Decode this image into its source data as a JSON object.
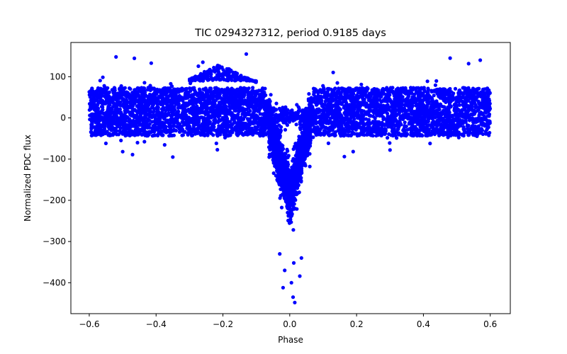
{
  "chart_data": {
    "type": "scatter",
    "title": "TIC 0294327312, period 0.9185 days",
    "xlabel": "Phase",
    "ylabel": "Normalized PDC flux",
    "xlim": [
      -0.655,
      0.66
    ],
    "ylim": [
      -475,
      183
    ],
    "x_ticks": [
      -0.6,
      -0.4,
      -0.2,
      0.0,
      0.2,
      0.4,
      0.6
    ],
    "x_tick_labels": [
      "−0.6",
      "−0.4",
      "−0.2",
      "0.0",
      "0.2",
      "0.4",
      "0.6"
    ],
    "y_ticks": [
      100,
      0,
      -100,
      -200,
      -300,
      -400
    ],
    "y_tick_labels": [
      "100",
      "0",
      "−100",
      "−200",
      "−300",
      "−400"
    ],
    "grid": false,
    "marker_color": "#0000ff",
    "series": [
      {
        "name": "Normalized PDC flux",
        "model": {
          "phase_range": [
            -0.6,
            0.6
          ],
          "baseline_mean": 15,
          "baseline_spread": 45,
          "primary_eclipse_center": 0.0,
          "primary_eclipse_depth": 205,
          "primary_eclipse_halfwidth": 0.07,
          "point_count": 5200
        },
        "outlier_points": [
          {
            "x": -0.13,
            "y": 155
          },
          {
            "x": 0.015,
            "y": -448
          },
          {
            "x": 0.01,
            "y": -435
          },
          {
            "x": -0.02,
            "y": -412
          },
          {
            "x": 0.005,
            "y": -400
          },
          {
            "x": 0.03,
            "y": -384
          },
          {
            "x": -0.015,
            "y": -370
          },
          {
            "x": 0.012,
            "y": -352
          },
          {
            "x": -0.03,
            "y": -330
          },
          {
            "x": 0.035,
            "y": -340
          },
          {
            "x": -0.5,
            "y": -82
          },
          {
            "x": -0.35,
            "y": -95
          },
          {
            "x": 0.42,
            "y": -62
          },
          {
            "x": 0.57,
            "y": 140
          },
          {
            "x": 0.48,
            "y": 145
          },
          {
            "x": -0.26,
            "y": 135
          },
          {
            "x": -0.52,
            "y": 148
          },
          {
            "x": 0.3,
            "y": -78
          },
          {
            "x": -0.05,
            "y": -102
          },
          {
            "x": 0.06,
            "y": -118
          }
        ]
      }
    ]
  }
}
